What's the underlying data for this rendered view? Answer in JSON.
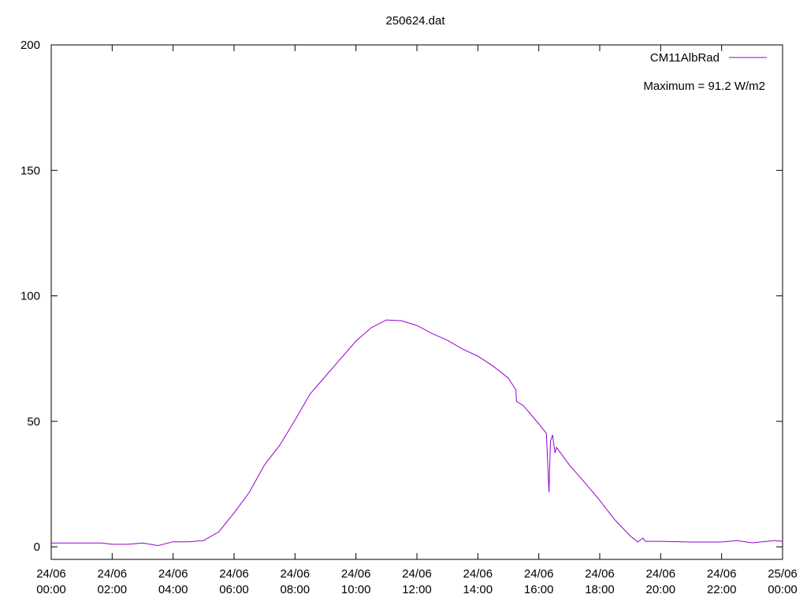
{
  "chart_data": {
    "type": "line",
    "title": "250624.dat",
    "x": [
      "24/06 00:00",
      "24/06 01:00",
      "24/06 01:40",
      "24/06 02:00",
      "24/06 02:30",
      "24/06 03:00",
      "24/06 03:30",
      "24/06 04:00",
      "24/06 04:30",
      "24/06 05:00",
      "24/06 05:30",
      "24/06 06:00",
      "24/06 06:30",
      "24/06 07:00",
      "24/06 07:30",
      "24/06 08:00",
      "24/06 08:30",
      "24/06 09:00",
      "24/06 09:30",
      "24/06 10:00",
      "24/06 10:30",
      "24/06 11:00",
      "24/06 11:30",
      "24/06 12:00",
      "24/06 12:30",
      "24/06 13:00",
      "24/06 13:30",
      "24/06 14:00",
      "24/06 14:30",
      "24/06 15:00",
      "24/06 15:15",
      "24/06 15:16",
      "24/06 15:30",
      "24/06 16:00",
      "24/06 16:15",
      "24/06 16:20",
      "24/06 16:23",
      "24/06 16:27",
      "24/06 16:32",
      "24/06 16:35",
      "24/06 17:00",
      "24/06 17:30",
      "24/06 18:00",
      "24/06 18:30",
      "24/06 19:00",
      "24/06 19:15",
      "24/06 19:25",
      "24/06 19:30",
      "24/06 20:00",
      "24/06 21:00",
      "24/06 22:00",
      "24/06 22:30",
      "24/06 23:00",
      "24/06 23:45",
      "25/06 00:00"
    ],
    "series": [
      {
        "name": "CM11AlbRad",
        "color": "#9400d3",
        "values": [
          1.5,
          1.5,
          1.5,
          1,
          1,
          1.5,
          0.5,
          2,
          2,
          2.5,
          6,
          13.5,
          21.7,
          32.7,
          40.5,
          50.5,
          61,
          68,
          75,
          82,
          87.3,
          90.4,
          90.1,
          88.2,
          85,
          82.3,
          78.8,
          76,
          72,
          67.2,
          62.5,
          58,
          56.2,
          49,
          45.2,
          21.7,
          42,
          44.6,
          37.4,
          39.6,
          32.7,
          25.7,
          18.5,
          10.7,
          4.4,
          1.9,
          3.5,
          2.2,
          2.2,
          1.9,
          1.9,
          2.5,
          1.6,
          2.5,
          2.2
        ]
      }
    ],
    "annotation": "Maximum = 91.2 W/m2",
    "xlim": [
      "24/06 00:00",
      "25/06 00:00"
    ],
    "xticks": [
      "24/06 00:00",
      "24/06 02:00",
      "24/06 04:00",
      "24/06 06:00",
      "24/06 08:00",
      "24/06 10:00",
      "24/06 12:00",
      "24/06 14:00",
      "24/06 16:00",
      "24/06 18:00",
      "24/06 20:00",
      "24/06 22:00",
      "25/06 00:00"
    ],
    "ylim": [
      -5,
      200
    ],
    "yticks": [
      0,
      50,
      100,
      150,
      200
    ],
    "legend": "top-right"
  }
}
